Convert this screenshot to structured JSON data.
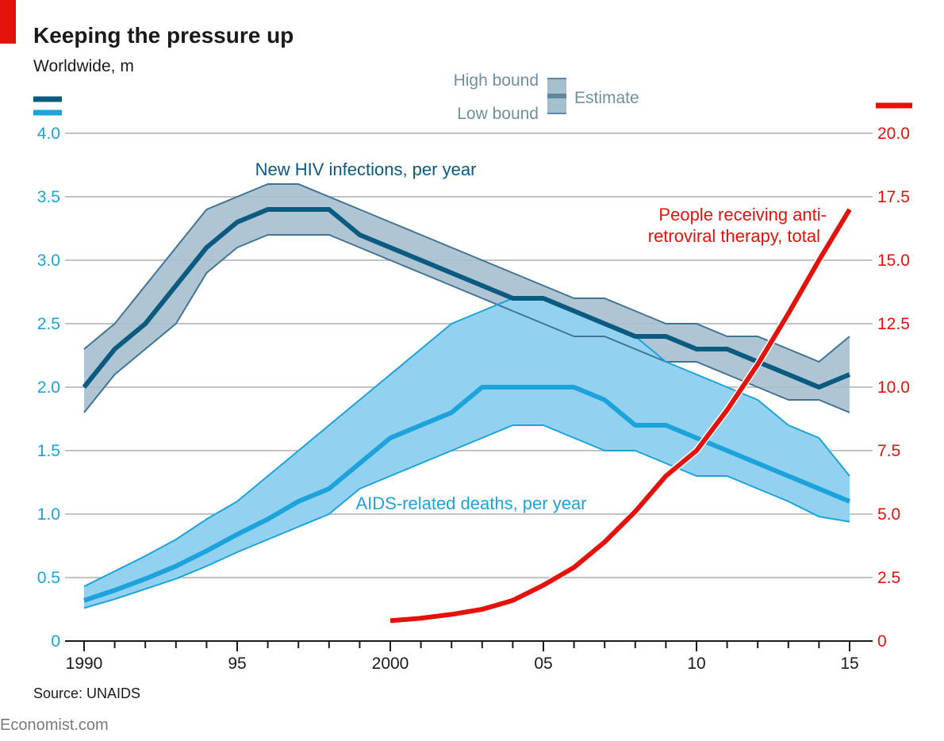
{
  "chart_data": {
    "type": "line",
    "title": "Keeping the pressure up",
    "subtitle": "Worldwide, m",
    "source": "Source: UNAIDS",
    "brand": "Economist.com",
    "x_ticks": [
      {
        "value": 1990,
        "label": "1990"
      },
      {
        "value": 1995,
        "label": "95"
      },
      {
        "value": 2000,
        "label": "2000"
      },
      {
        "value": 2005,
        "label": "05"
      },
      {
        "value": 2010,
        "label": "10"
      },
      {
        "value": 2015,
        "label": "15"
      }
    ],
    "xlim": [
      1990,
      2015
    ],
    "y_left": {
      "range": [
        0,
        4
      ],
      "ticks": [
        {
          "value": 0,
          "label": "0"
        },
        {
          "value": 0.5,
          "label": "0.5"
        },
        {
          "value": 1,
          "label": "1.0"
        },
        {
          "value": 1.5,
          "label": "1.5"
        },
        {
          "value": 2,
          "label": "2.0"
        },
        {
          "value": 2.5,
          "label": "2.5"
        },
        {
          "value": 3,
          "label": "3.0"
        },
        {
          "value": 3.5,
          "label": "3.5"
        },
        {
          "value": 4,
          "label": "4.0"
        }
      ]
    },
    "y_right": {
      "range": [
        0,
        20
      ],
      "ticks": [
        {
          "value": 0,
          "label": "0"
        },
        {
          "value": 2.5,
          "label": "2.5"
        },
        {
          "value": 5,
          "label": "5.0"
        },
        {
          "value": 7.5,
          "label": "7.5"
        },
        {
          "value": 10,
          "label": "10.0"
        },
        {
          "value": 12.5,
          "label": "12.5"
        },
        {
          "value": 15,
          "label": "15.0"
        },
        {
          "value": 17.5,
          "label": "17.5"
        },
        {
          "value": 20,
          "label": "20.0"
        }
      ]
    },
    "grid": true,
    "legend": {
      "high": "High bound",
      "low": "Low bound",
      "estimate": "Estimate",
      "position": "top-center"
    },
    "series": [
      {
        "name": "New HIV infections, per year",
        "axis": "left",
        "color": "#0b5a80",
        "band_color": "#a6bfcf",
        "x": [
          1990,
          1991,
          1992,
          1993,
          1994,
          1995,
          1996,
          1997,
          1998,
          1999,
          2000,
          2001,
          2002,
          2003,
          2004,
          2005,
          2006,
          2007,
          2008,
          2009,
          2010,
          2011,
          2012,
          2013,
          2014,
          2015
        ],
        "values": [
          2.0,
          2.3,
          2.5,
          2.8,
          3.1,
          3.3,
          3.4,
          3.4,
          3.4,
          3.2,
          3.1,
          3.0,
          2.9,
          2.8,
          2.7,
          2.7,
          2.6,
          2.5,
          2.4,
          2.4,
          2.3,
          2.3,
          2.2,
          2.1,
          2.0,
          2.1
        ],
        "high": [
          2.3,
          2.5,
          2.8,
          3.1,
          3.4,
          3.5,
          3.6,
          3.6,
          3.5,
          3.4,
          3.3,
          3.2,
          3.1,
          3.0,
          2.9,
          2.8,
          2.7,
          2.7,
          2.6,
          2.5,
          2.5,
          2.4,
          2.4,
          2.3,
          2.2,
          2.4
        ],
        "low": [
          1.8,
          2.1,
          2.3,
          2.5,
          2.9,
          3.1,
          3.2,
          3.2,
          3.2,
          3.1,
          3.0,
          2.9,
          2.8,
          2.7,
          2.6,
          2.5,
          2.4,
          2.4,
          2.3,
          2.2,
          2.2,
          2.1,
          2.0,
          1.9,
          1.9,
          1.8
        ]
      },
      {
        "name": "AIDS-related deaths, per year",
        "axis": "left",
        "color": "#1ca3dc",
        "band_color": "#92d1ef",
        "x": [
          1990,
          1991,
          1992,
          1993,
          1994,
          1995,
          1996,
          1997,
          1998,
          1999,
          2000,
          2001,
          2002,
          2003,
          2004,
          2005,
          2006,
          2007,
          2008,
          2009,
          2010,
          2011,
          2012,
          2013,
          2014,
          2015
        ],
        "values": [
          0.32,
          0.4,
          0.49,
          0.59,
          0.71,
          0.84,
          0.96,
          1.1,
          1.2,
          1.4,
          1.6,
          1.7,
          1.8,
          2.0,
          2.0,
          2.0,
          2.0,
          1.9,
          1.7,
          1.7,
          1.6,
          1.5,
          1.4,
          1.3,
          1.2,
          1.1
        ],
        "high": [
          0.43,
          0.55,
          0.67,
          0.8,
          0.96,
          1.1,
          1.3,
          1.5,
          1.7,
          1.9,
          2.1,
          2.3,
          2.5,
          2.6,
          2.7,
          2.7,
          2.6,
          2.5,
          2.4,
          2.2,
          2.1,
          2.0,
          1.9,
          1.7,
          1.6,
          1.3
        ],
        "low": [
          0.26,
          0.33,
          0.41,
          0.49,
          0.59,
          0.7,
          0.8,
          0.9,
          1.0,
          1.2,
          1.3,
          1.4,
          1.5,
          1.6,
          1.7,
          1.7,
          1.6,
          1.5,
          1.5,
          1.4,
          1.3,
          1.3,
          1.2,
          1.1,
          0.98,
          0.94
        ]
      },
      {
        "name": "People receiving anti-retroviral therapy, total",
        "label_lines": [
          "People receiving anti-",
          "retroviral therapy, total"
        ],
        "axis": "right",
        "color": "#e3120b",
        "x": [
          2000,
          2001,
          2002,
          2003,
          2004,
          2005,
          2006,
          2007,
          2008,
          2009,
          2010,
          2011,
          2012,
          2013,
          2014,
          2015
        ],
        "values": [
          0.8,
          0.9,
          1.05,
          1.25,
          1.6,
          2.2,
          2.9,
          3.9,
          5.1,
          6.5,
          7.5,
          9.1,
          10.9,
          12.9,
          15.0,
          17.0
        ]
      }
    ]
  },
  "colors": {
    "accent_red": "#e3120b",
    "grid": "#c2c2c2",
    "axis": "#1a1a1a"
  }
}
